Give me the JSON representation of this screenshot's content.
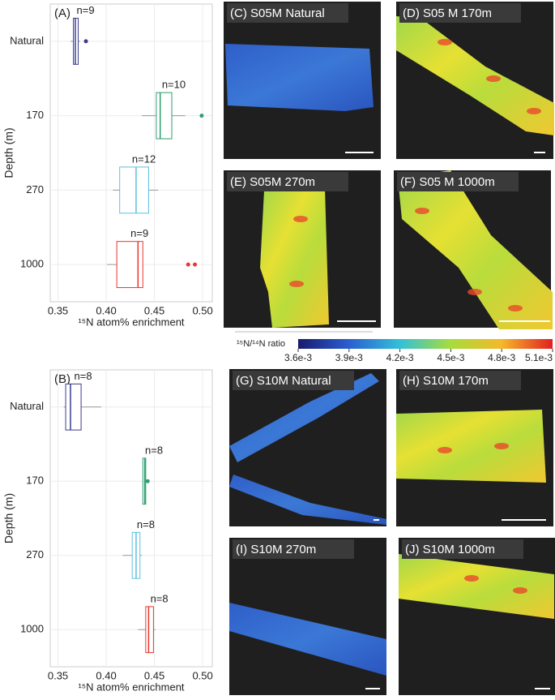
{
  "chart_data": [
    {
      "type": "box",
      "title": "(A)",
      "categories": [
        "Natural",
        "170",
        "270",
        "1000"
      ],
      "colors": [
        "#3b3b8f",
        "#2e9e6e",
        "#5bc0de",
        "#e8372f"
      ],
      "boxes": [
        {
          "whislo": 0.363,
          "q1": 0.366,
          "med": 0.368,
          "q3": 0.371,
          "whishi": 0.373,
          "fliers": [
            0.379
          ]
        },
        {
          "whislo": 0.437,
          "q1": 0.452,
          "med": 0.456,
          "q3": 0.468,
          "whishi": 0.482,
          "fliers": [
            0.499
          ]
        },
        {
          "whislo": 0.407,
          "q1": 0.414,
          "med": 0.431,
          "q3": 0.444,
          "whishi": 0.454,
          "fliers": []
        },
        {
          "whislo": 0.401,
          "q1": 0.411,
          "med": 0.433,
          "q3": 0.438,
          "whishi": 0.438,
          "fliers": [
            0.485,
            0.492
          ]
        }
      ],
      "annotations": [
        "n=9",
        "n=10",
        "n=12",
        "n=9"
      ],
      "xlabel": "¹⁵N atom% enrichment",
      "ylabel": "Depth (m)",
      "xlim": [
        0.342,
        0.51
      ],
      "xticks": [
        0.35,
        {
          "value": 0.4,
          "label": "0.40"
        },
        0.45,
        {
          "value": 0.5,
          "label": "0.50"
        }
      ],
      "grid": true
    },
    {
      "type": "box",
      "title": "(B)",
      "categories": [
        "Natural",
        "170",
        "270",
        "1000"
      ],
      "colors": [
        "#3b3b8f",
        "#2e9e6e",
        "#5bc0de",
        "#e8372f"
      ],
      "boxes": [
        {
          "whislo": 0.356,
          "q1": 0.358,
          "med": 0.363,
          "q3": 0.374,
          "whishi": 0.395,
          "fliers": []
        },
        {
          "whislo": 0.438,
          "q1": 0.438,
          "med": 0.44,
          "q3": 0.441,
          "whishi": 0.441,
          "fliers": [
            0.443
          ]
        },
        {
          "whislo": 0.417,
          "q1": 0.427,
          "med": 0.431,
          "q3": 0.435,
          "whishi": 0.437,
          "fliers": []
        },
        {
          "whislo": 0.433,
          "q1": 0.441,
          "med": 0.444,
          "q3": 0.449,
          "whishi": 0.451,
          "fliers": []
        }
      ],
      "annotations": [
        "n=8",
        "n=8",
        "n=8",
        "n=8"
      ],
      "xlabel": "¹⁵N atom% enrichment",
      "ylabel": "Depth (m)",
      "xlim": [
        0.342,
        0.51
      ],
      "xticks": [
        0.35,
        {
          "value": 0.4,
          "label": "0.40"
        },
        0.45,
        {
          "value": 0.5,
          "label": "0.50"
        }
      ],
      "grid": true
    }
  ],
  "colorbar": {
    "label": "¹⁵N/¹⁴N ratio",
    "lim": [
      0.0036,
      0.0051
    ],
    "ticks": [
      {
        "value": 0.0036,
        "label": "3.6e-3"
      },
      {
        "value": 0.0039,
        "label": "3.9e-3"
      },
      {
        "value": 0.0042,
        "label": "4.2e-3"
      },
      {
        "value": 0.0045,
        "label": "4.5e-3"
      },
      {
        "value": 0.0048,
        "label": "4.8e-3"
      },
      {
        "value": 0.0051,
        "label": "5.1e-3"
      }
    ]
  },
  "panels": [
    {
      "label": "(C) S05M Natural"
    },
    {
      "label": "(D) S05 M 170m"
    },
    {
      "label": "(E) S05M 270m"
    },
    {
      "label": "(F) S05 M 1000m"
    },
    {
      "label": "(G) S10M Natural"
    },
    {
      "label": "(H) S10M 170m"
    },
    {
      "label": "(I) S10M 270m"
    },
    {
      "label": "(J) S10M 1000m"
    }
  ]
}
